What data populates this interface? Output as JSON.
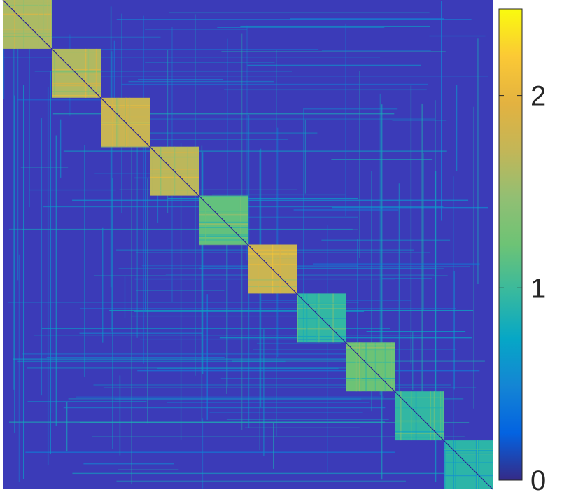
{
  "chart_data": {
    "type": "heatmap",
    "title": "",
    "xlabel": "",
    "ylabel": "",
    "colormap": "parula",
    "colorbar": {
      "range": [
        0,
        2.45
      ],
      "ticks": [
        0,
        1,
        2
      ],
      "tick_labels": [
        "0",
        "1",
        "2"
      ],
      "placement": "right"
    },
    "block_count": 10,
    "background_level": 0.28,
    "blocks": [
      {
        "index": 1,
        "mean_value": 1.6
      },
      {
        "index": 2,
        "mean_value": 1.62
      },
      {
        "index": 3,
        "mean_value": 1.75
      },
      {
        "index": 4,
        "mean_value": 1.68
      },
      {
        "index": 5,
        "mean_value": 1.18
      },
      {
        "index": 6,
        "mean_value": 1.78
      },
      {
        "index": 7,
        "mean_value": 0.95
      },
      {
        "index": 8,
        "mean_value": 1.22
      },
      {
        "index": 9,
        "mean_value": 0.95
      },
      {
        "index": 10,
        "mean_value": 0.92
      }
    ],
    "diagonal_value": 0.08,
    "axes_visible": false,
    "grid": false
  }
}
